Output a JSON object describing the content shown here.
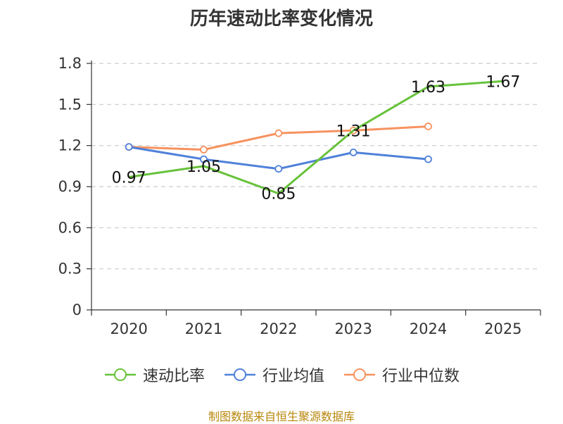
{
  "chart_data": {
    "type": "line",
    "title": "历年速动比率变化情况",
    "categories": [
      "2020",
      "2021",
      "2022",
      "2023",
      "2024",
      "2025"
    ],
    "ylim": [
      0,
      1.8
    ],
    "yticks": [
      0,
      0.3,
      0.6,
      0.9,
      1.2,
      1.5,
      1.8
    ],
    "ytick_labels": [
      "0",
      "0.3",
      "0.6",
      "0.9",
      "1.2",
      "1.5",
      "1.8"
    ],
    "grid": true,
    "legend_position": "bottom",
    "series": [
      {
        "name": "速动比率",
        "color": "#67c23a",
        "values": [
          0.97,
          1.05,
          0.85,
          1.31,
          1.63,
          1.67
        ],
        "labels": [
          "0.97",
          "1.05",
          "0.85",
          "1.31",
          "1.63",
          "1.67"
        ]
      },
      {
        "name": "行业均值",
        "color": "#4f81d9",
        "values": [
          1.19,
          1.1,
          1.03,
          1.15,
          1.1,
          null
        ]
      },
      {
        "name": "行业中位数",
        "color": "#f7925f",
        "values": [
          1.19,
          1.17,
          1.29,
          1.31,
          1.34,
          null
        ]
      }
    ]
  },
  "source": "制图数据来自恒生聚源数据库"
}
